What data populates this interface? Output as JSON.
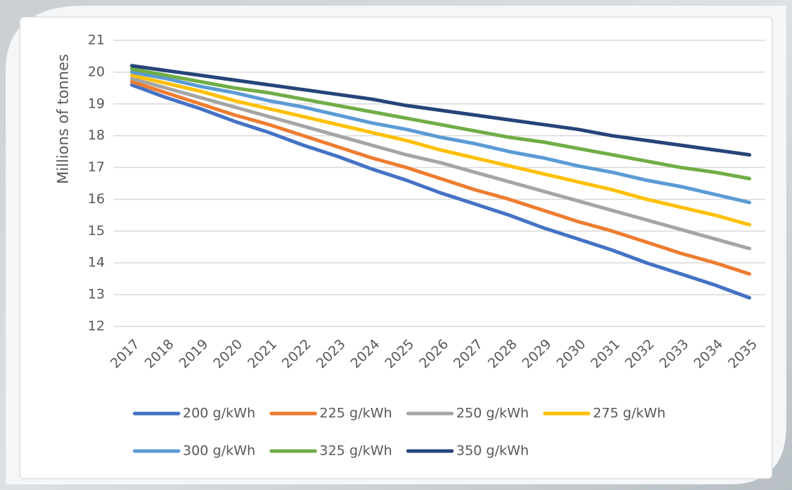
{
  "chart_data": {
    "type": "line",
    "y_label": "Millions of tonnes",
    "categories": [
      "2017",
      "2018",
      "2019",
      "2020",
      "2021",
      "2022",
      "2023",
      "2024",
      "2025",
      "2026",
      "2027",
      "2028",
      "2029",
      "2030",
      "2031",
      "2032",
      "2033",
      "2034",
      "2035"
    ],
    "ylim": [
      12,
      21
    ],
    "yticks": [
      12,
      13,
      14,
      15,
      16,
      17,
      18,
      19,
      20,
      21
    ],
    "grid": true,
    "legend": "bottom",
    "series": [
      {
        "name": "200 g/kWh",
        "color": "#4472c4",
        "values": [
          19.6,
          19.2,
          18.85,
          18.45,
          18.1,
          17.7,
          17.35,
          16.95,
          16.6,
          16.2,
          15.85,
          15.5,
          15.1,
          14.75,
          14.4,
          14.0,
          13.65,
          13.3,
          12.9
        ]
      },
      {
        "name": "225 g/kWh",
        "color": "#ed7d31",
        "values": [
          19.7,
          19.35,
          19.0,
          18.65,
          18.35,
          18.0,
          17.65,
          17.3,
          17.0,
          16.65,
          16.3,
          16.0,
          15.65,
          15.3,
          15.0,
          14.65,
          14.3,
          14.0,
          13.65
        ]
      },
      {
        "name": "250 g/kWh",
        "color": "#a5a5a5",
        "values": [
          19.8,
          19.5,
          19.2,
          18.9,
          18.6,
          18.3,
          18.0,
          17.7,
          17.4,
          17.15,
          16.85,
          16.55,
          16.25,
          15.95,
          15.65,
          15.35,
          15.05,
          14.75,
          14.45
        ]
      },
      {
        "name": "275 g/kWh",
        "color": "#ffc000",
        "values": [
          19.9,
          19.65,
          19.4,
          19.1,
          18.85,
          18.6,
          18.35,
          18.1,
          17.85,
          17.55,
          17.3,
          17.05,
          16.8,
          16.55,
          16.3,
          16.0,
          15.75,
          15.5,
          15.2
        ]
      },
      {
        "name": "300 g/kWh",
        "color": "#5b9bd5",
        "values": [
          20.0,
          19.8,
          19.55,
          19.35,
          19.1,
          18.9,
          18.65,
          18.4,
          18.2,
          17.95,
          17.75,
          17.5,
          17.3,
          17.05,
          16.85,
          16.6,
          16.4,
          16.15,
          15.9
        ]
      },
      {
        "name": "325 g/kWh",
        "color": "#70ad47",
        "values": [
          20.1,
          19.9,
          19.7,
          19.5,
          19.35,
          19.15,
          18.95,
          18.75,
          18.55,
          18.35,
          18.15,
          17.95,
          17.8,
          17.6,
          17.4,
          17.2,
          17.0,
          16.85,
          16.65
        ]
      },
      {
        "name": "350 g/kWh",
        "color": "#264478",
        "values": [
          20.2,
          20.05,
          19.9,
          19.75,
          19.6,
          19.45,
          19.3,
          19.15,
          18.95,
          18.8,
          18.65,
          18.5,
          18.35,
          18.2,
          18.0,
          17.85,
          17.7,
          17.55,
          17.4
        ]
      }
    ]
  }
}
